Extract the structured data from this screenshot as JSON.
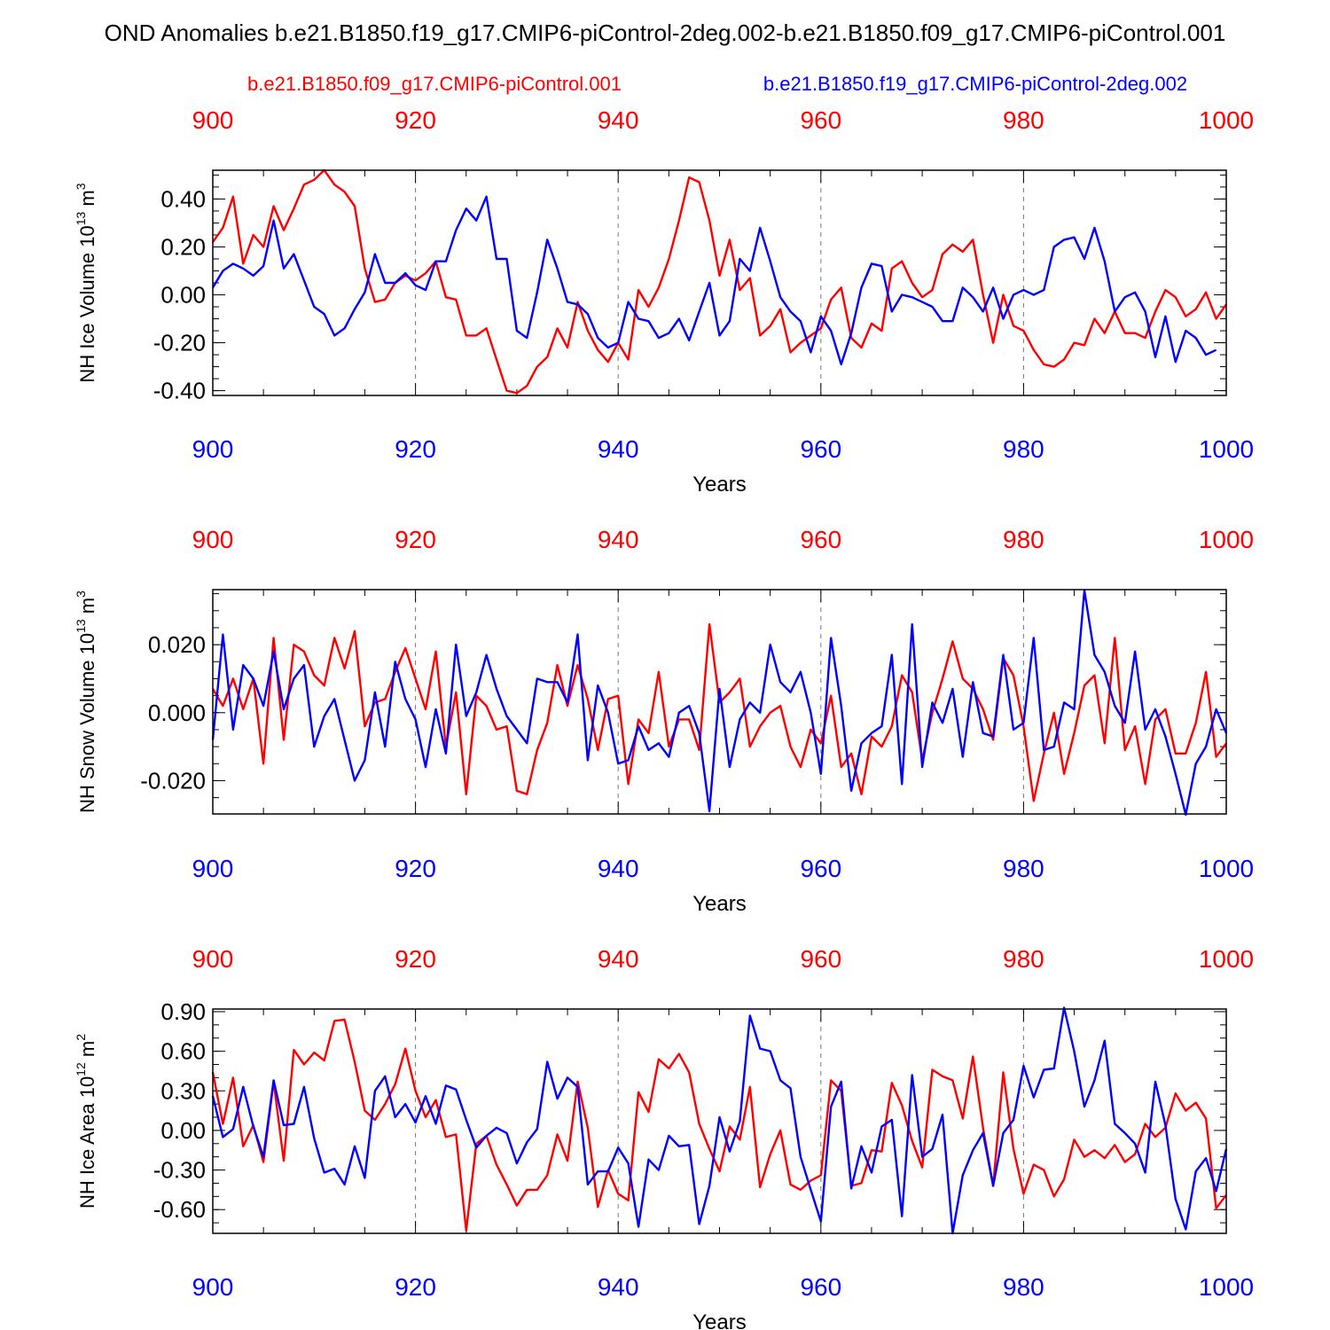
{
  "title": "OND Anomalies b.e21.B1850.f19_g17.CMIP6-piControl-2deg.002-b.e21.B1850.f09_g17.CMIP6-piControl.001",
  "legend": {
    "red_label": "b.e21.B1850.f09_g17.CMIP6-piControl.001",
    "blue_label": "b.e21.B1850.f19_g17.CMIP6-piControl-2deg.002"
  },
  "colors": {
    "red": "#ff0000",
    "blue": "#0000ff",
    "axis": "#000000",
    "grid": "#777777"
  },
  "chart_data": [
    {
      "type": "line",
      "ylabel_main": "NH Ice Volume 10",
      "ylabel_exp": "13",
      "ylabel_unit": " m",
      "ylabel_unit_exp": "3",
      "xlabel": "Years",
      "xlim": [
        900,
        1000
      ],
      "ylim": [
        -0.42,
        0.52
      ],
      "x_ticks": [
        "900",
        "920",
        "940",
        "960",
        "980",
        "1000"
      ],
      "y_ticks": [
        {
          "v": -0.4,
          "label": "-0.40"
        },
        {
          "v": -0.2,
          "label": "-0.20"
        },
        {
          "v": 0.0,
          "label": "0.00"
        },
        {
          "v": 0.2,
          "label": "0.20"
        },
        {
          "v": 0.4,
          "label": "0.40"
        }
      ],
      "y_minor_step": 0.05,
      "x_start": 900,
      "series": [
        {
          "name": "b.e21.B1850.f09_g17.CMIP6-piControl.001",
          "color": "red",
          "values": [
            0.22,
            0.28,
            0.41,
            0.13,
            0.25,
            0.2,
            0.37,
            0.27,
            0.36,
            0.46,
            0.48,
            0.52,
            0.46,
            0.43,
            0.37,
            0.11,
            -0.03,
            -0.02,
            0.05,
            0.08,
            0.06,
            0.09,
            0.14,
            -0.01,
            -0.02,
            -0.17,
            -0.17,
            -0.14,
            -0.27,
            -0.4,
            -0.41,
            -0.38,
            -0.3,
            -0.26,
            -0.14,
            -0.22,
            -0.03,
            -0.15,
            -0.23,
            -0.28,
            -0.2,
            -0.27,
            0.02,
            -0.05,
            0.03,
            0.15,
            0.31,
            0.49,
            0.47,
            0.31,
            0.08,
            0.23,
            0.02,
            0.07,
            -0.17,
            -0.13,
            -0.06,
            -0.24,
            -0.2,
            -0.17,
            -0.14,
            -0.02,
            0.03,
            -0.18,
            -0.22,
            -0.12,
            -0.15,
            0.11,
            0.14,
            0.05,
            -0.01,
            0.02,
            0.17,
            0.21,
            0.18,
            0.23,
            0.0,
            -0.2,
            0.0,
            -0.13,
            -0.15,
            -0.23,
            -0.29,
            -0.3,
            -0.27,
            -0.2,
            -0.21,
            -0.1,
            -0.16,
            -0.07,
            -0.16,
            -0.16,
            -0.18,
            -0.07,
            0.02,
            -0.01,
            -0.09,
            -0.06,
            0.01,
            -0.1,
            -0.04
          ]
        },
        {
          "name": "b.e21.B1850.f19_g17.CMIP6-piControl-2deg.002",
          "color": "blue",
          "values": [
            0.03,
            0.1,
            0.13,
            0.11,
            0.08,
            0.12,
            0.31,
            0.11,
            0.17,
            0.06,
            -0.05,
            -0.08,
            -0.17,
            -0.14,
            -0.06,
            0.01,
            0.17,
            0.05,
            0.05,
            0.09,
            0.04,
            0.02,
            0.14,
            0.14,
            0.27,
            0.36,
            0.31,
            0.41,
            0.15,
            0.15,
            -0.15,
            -0.18,
            0.01,
            0.23,
            0.11,
            -0.03,
            -0.04,
            -0.08,
            -0.18,
            -0.22,
            -0.2,
            -0.03,
            -0.1,
            -0.11,
            -0.18,
            -0.16,
            -0.1,
            -0.19,
            -0.07,
            0.05,
            -0.17,
            -0.11,
            0.15,
            0.1,
            0.28,
            0.14,
            -0.01,
            -0.07,
            -0.11,
            -0.24,
            -0.09,
            -0.15,
            -0.29,
            -0.16,
            0.03,
            0.13,
            0.12,
            -0.07,
            0.0,
            -0.01,
            -0.03,
            -0.05,
            -0.11,
            -0.11,
            0.03,
            -0.01,
            -0.07,
            0.03,
            -0.1,
            0.0,
            0.02,
            0.0,
            0.02,
            0.2,
            0.23,
            0.24,
            0.15,
            0.28,
            0.14,
            -0.07,
            -0.01,
            0.01,
            -0.07,
            -0.26,
            -0.09,
            -0.28,
            -0.15,
            -0.18,
            -0.25,
            -0.23
          ]
        }
      ]
    },
    {
      "type": "line",
      "ylabel_main": "NH Snow Volume 10",
      "ylabel_exp": "13",
      "ylabel_unit": " m",
      "ylabel_unit_exp": "3",
      "xlabel": "Years",
      "xlim": [
        900,
        1000
      ],
      "ylim": [
        -0.0298,
        0.0362
      ],
      "x_ticks": [
        "900",
        "920",
        "940",
        "960",
        "980",
        "1000"
      ],
      "y_ticks": [
        {
          "v": -0.02,
          "label": "-0.020"
        },
        {
          "v": 0.0,
          "label": "0.000"
        },
        {
          "v": 0.02,
          "label": "0.020"
        }
      ],
      "y_minor_step": 0.005,
      "x_start": 900,
      "series": [
        {
          "name": "b.e21.B1850.f09_g17.CMIP6-piControl.001",
          "color": "red",
          "values": [
            0.007,
            0.002,
            0.01,
            0.001,
            0.01,
            -0.015,
            0.022,
            -0.008,
            0.02,
            0.018,
            0.011,
            0.008,
            0.022,
            0.013,
            0.024,
            -0.004,
            0.003,
            0.004,
            0.012,
            0.019,
            0.01,
            0.001,
            0.018,
            -0.01,
            0.006,
            -0.024,
            0.005,
            0.002,
            -0.005,
            -0.004,
            -0.023,
            -0.024,
            -0.011,
            -0.003,
            0.014,
            0.002,
            0.014,
            0.004,
            -0.011,
            0.004,
            0.005,
            -0.021,
            -0.002,
            -0.006,
            0.012,
            -0.01,
            -0.002,
            -0.002,
            -0.011,
            0.026,
            0.003,
            0.006,
            0.01,
            -0.01,
            -0.004,
            0.0,
            0.002,
            -0.01,
            -0.016,
            -0.005,
            -0.009,
            0.005,
            -0.016,
            -0.012,
            -0.024,
            -0.007,
            -0.01,
            -0.004,
            0.011,
            0.006,
            -0.014,
            0.0,
            0.01,
            0.021,
            0.01,
            0.007,
            0.001,
            -0.008,
            0.016,
            0.011,
            -0.004,
            -0.026,
            -0.012,
            0.0,
            -0.018,
            -0.006,
            0.008,
            0.011,
            -0.009,
            0.022,
            -0.011,
            -0.004,
            -0.021,
            -0.002,
            0.001,
            -0.012,
            -0.012,
            -0.003,
            0.012,
            -0.013,
            -0.009
          ]
        },
        {
          "name": "b.e21.B1850.f19_g17.CMIP6-piControl-2deg.002",
          "color": "blue",
          "values": [
            -0.008,
            0.023,
            -0.005,
            0.014,
            0.01,
            0.002,
            0.018,
            0.001,
            0.01,
            0.014,
            -0.01,
            -0.001,
            0.004,
            -0.008,
            -0.02,
            -0.014,
            0.006,
            -0.01,
            0.015,
            0.004,
            -0.002,
            -0.016,
            0.001,
            -0.012,
            0.02,
            -0.001,
            0.006,
            0.017,
            0.007,
            -0.001,
            -0.005,
            -0.009,
            0.01,
            0.009,
            0.009,
            0.003,
            0.023,
            -0.014,
            0.008,
            0.0,
            -0.015,
            -0.014,
            -0.004,
            -0.011,
            -0.009,
            -0.013,
            0.0,
            0.002,
            -0.006,
            -0.029,
            0.007,
            -0.016,
            -0.002,
            0.003,
            0.0,
            0.02,
            0.009,
            0.006,
            0.012,
            0.0,
            -0.018,
            0.022,
            0.002,
            -0.023,
            -0.009,
            -0.006,
            -0.004,
            0.017,
            -0.021,
            0.026,
            -0.016,
            0.003,
            -0.003,
            0.007,
            -0.013,
            0.009,
            -0.006,
            -0.007,
            0.017,
            -0.005,
            -0.003,
            0.022,
            -0.011,
            -0.01,
            0.003,
            0.001,
            0.036,
            0.017,
            0.012,
            0.002,
            -0.003,
            0.018,
            -0.005,
            0.001,
            -0.007,
            -0.018,
            -0.03,
            -0.015,
            -0.01,
            0.001,
            -0.006
          ]
        }
      ]
    },
    {
      "type": "line",
      "ylabel_main": "NH Ice Area 10",
      "ylabel_exp": "12",
      "ylabel_unit": " m",
      "ylabel_unit_exp": "2",
      "xlabel": "Years",
      "xlim": [
        900,
        1000
      ],
      "ylim": [
        -0.78,
        0.92
      ],
      "x_ticks": [
        "900",
        "920",
        "940",
        "960",
        "980",
        "1000"
      ],
      "y_ticks": [
        {
          "v": -0.6,
          "label": "-0.60"
        },
        {
          "v": -0.3,
          "label": "-0.30"
        },
        {
          "v": 0.0,
          "label": "0.00"
        },
        {
          "v": 0.3,
          "label": "0.30"
        },
        {
          "v": 0.6,
          "label": "0.60"
        },
        {
          "v": 0.9,
          "label": "0.90"
        }
      ],
      "y_minor_step": 0.1,
      "x_start": 900,
      "series": [
        {
          "name": "b.e21.B1850.f09_g17.CMIP6-piControl.001",
          "color": "red",
          "values": [
            0.44,
            0.05,
            0.4,
            -0.12,
            0.04,
            -0.24,
            0.37,
            -0.23,
            0.61,
            0.5,
            0.59,
            0.53,
            0.83,
            0.84,
            0.52,
            0.15,
            0.08,
            0.2,
            0.35,
            0.62,
            0.3,
            0.1,
            0.23,
            -0.05,
            -0.03,
            -0.76,
            -0.1,
            -0.04,
            -0.26,
            -0.41,
            -0.57,
            -0.45,
            -0.45,
            -0.34,
            -0.03,
            -0.23,
            0.37,
            0.02,
            -0.58,
            -0.3,
            -0.48,
            -0.53,
            0.29,
            0.14,
            0.54,
            0.47,
            0.58,
            0.44,
            0.05,
            -0.14,
            -0.31,
            0.03,
            -0.07,
            0.33,
            -0.43,
            -0.18,
            0.0,
            -0.41,
            -0.45,
            -0.38,
            -0.34,
            0.38,
            0.3,
            -0.42,
            -0.4,
            -0.15,
            -0.16,
            0.36,
            0.19,
            -0.08,
            -0.28,
            0.46,
            0.41,
            0.38,
            0.09,
            0.56,
            0.02,
            -0.42,
            0.44,
            -0.14,
            -0.48,
            -0.26,
            -0.3,
            -0.5,
            -0.37,
            -0.07,
            -0.2,
            -0.15,
            -0.21,
            -0.11,
            -0.24,
            -0.18,
            0.05,
            -0.05,
            0.02,
            0.28,
            0.15,
            0.21,
            0.09,
            -0.59,
            -0.49
          ]
        },
        {
          "name": "b.e21.B1850.f19_g17.CMIP6-piControl-2deg.002",
          "color": "blue",
          "values": [
            0.26,
            -0.05,
            0.01,
            0.33,
            0.03,
            -0.2,
            0.38,
            0.04,
            0.05,
            0.33,
            -0.06,
            -0.32,
            -0.29,
            -0.41,
            -0.12,
            -0.36,
            0.3,
            0.41,
            0.1,
            0.2,
            0.06,
            0.26,
            0.05,
            0.34,
            0.31,
            0.08,
            -0.13,
            -0.04,
            0.02,
            -0.02,
            -0.25,
            -0.09,
            0.01,
            0.52,
            0.24,
            0.4,
            0.33,
            -0.41,
            -0.31,
            -0.31,
            -0.13,
            -0.25,
            -0.73,
            -0.22,
            -0.3,
            -0.04,
            -0.12,
            -0.11,
            -0.71,
            -0.42,
            0.1,
            -0.16,
            0.07,
            0.87,
            0.62,
            0.6,
            0.38,
            0.32,
            -0.2,
            -0.45,
            -0.69,
            0.18,
            0.37,
            -0.44,
            -0.12,
            -0.32,
            0.03,
            0.08,
            -0.65,
            0.42,
            -0.2,
            -0.14,
            0.12,
            -0.78,
            -0.34,
            -0.15,
            -0.02,
            -0.42,
            -0.02,
            0.08,
            0.49,
            0.25,
            0.46,
            0.47,
            0.93,
            0.6,
            0.18,
            0.38,
            0.68,
            0.05,
            -0.02,
            -0.1,
            -0.32,
            0.37,
            0.04,
            -0.52,
            -0.75,
            -0.31,
            -0.21,
            -0.46,
            -0.14
          ]
        }
      ]
    }
  ]
}
